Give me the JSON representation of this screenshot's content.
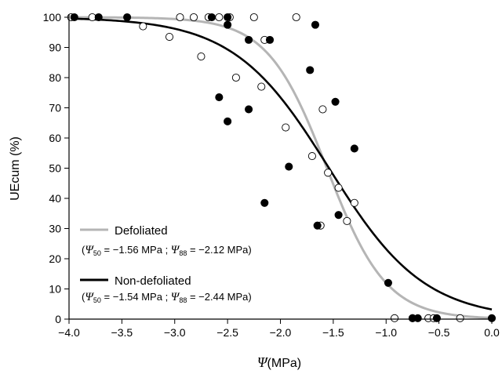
{
  "chart_data": {
    "type": "scatter",
    "xlabel_symbol": "Ψ",
    "xlabel_unit": "(MPa)",
    "ylabel": "UEcum (%)",
    "xlim": [
      -4.0,
      0.0
    ],
    "ylim": [
      0,
      100
    ],
    "x_ticks": [
      "−4.0",
      "−3.5",
      "−3.0",
      "−2.5",
      "−2.0",
      "−1.5",
      "−1.0",
      "−0.5",
      "0.0"
    ],
    "x_tick_values": [
      -4.0,
      -3.5,
      -3.0,
      -2.5,
      -2.0,
      -1.5,
      -1.0,
      -0.5,
      0.0
    ],
    "y_ticks": [
      "0",
      "10",
      "20",
      "30",
      "40",
      "50",
      "60",
      "70",
      "80",
      "90",
      "100"
    ],
    "y_tick_values": [
      0,
      10,
      20,
      30,
      40,
      50,
      60,
      70,
      80,
      90,
      100
    ],
    "grid": false,
    "legend_position": "bottom-left",
    "series": [
      {
        "name": "Defoliated",
        "color": "#b5b5b5",
        "marker": "open-circle",
        "curve": {
          "psi50": -1.56,
          "psi88": -2.12
        },
        "legend_note": {
          "open": "(",
          "psi50_sub": "50",
          "psi50_text": " = −1.56 MPa ; ",
          "psi88_sub": "88",
          "psi88_text": " = −2.12 MPa)"
        },
        "points": [
          [
            -3.98,
            100
          ],
          [
            -3.78,
            100
          ],
          [
            -3.3,
            97
          ],
          [
            -3.05,
            93.5
          ],
          [
            -2.95,
            100
          ],
          [
            -2.82,
            100
          ],
          [
            -2.75,
            87
          ],
          [
            -2.68,
            100
          ],
          [
            -2.58,
            100
          ],
          [
            -2.48,
            100
          ],
          [
            -2.42,
            80
          ],
          [
            -2.25,
            100
          ],
          [
            -2.18,
            77
          ],
          [
            -2.15,
            92.5
          ],
          [
            -1.95,
            63.5
          ],
          [
            -1.85,
            100
          ],
          [
            -1.7,
            54
          ],
          [
            -1.62,
            31
          ],
          [
            -1.6,
            69.5
          ],
          [
            -1.55,
            48.5
          ],
          [
            -1.45,
            43.5
          ],
          [
            -1.37,
            32.5
          ],
          [
            -1.3,
            38.5
          ],
          [
            -0.92,
            0.3
          ],
          [
            -0.75,
            0.3
          ],
          [
            -0.6,
            0.3
          ],
          [
            -0.55,
            0.3
          ],
          [
            -0.3,
            0.3
          ]
        ]
      },
      {
        "name": "Non-defoliated",
        "color": "#000000",
        "marker": "filled-circle",
        "curve": {
          "psi50": -1.54,
          "psi88": -2.44
        },
        "legend_note": {
          "open": "(",
          "psi50_sub": "50",
          "psi50_text": " = −1.54 MPa ; ",
          "psi88_sub": "88",
          "psi88_text": " = −2.44 MPa)"
        },
        "points": [
          [
            -3.95,
            100
          ],
          [
            -3.72,
            100
          ],
          [
            -3.45,
            100
          ],
          [
            -2.65,
            100
          ],
          [
            -2.5,
            100
          ],
          [
            -2.5,
            97.5
          ],
          [
            -2.58,
            73.5
          ],
          [
            -2.5,
            65.5
          ],
          [
            -2.3,
            92.5
          ],
          [
            -2.3,
            69.5
          ],
          [
            -2.1,
            92.5
          ],
          [
            -2.15,
            38.5
          ],
          [
            -1.92,
            50.5
          ],
          [
            -1.72,
            82.5
          ],
          [
            -1.67,
            97.5
          ],
          [
            -1.65,
            31
          ],
          [
            -1.48,
            72
          ],
          [
            -1.45,
            34.5
          ],
          [
            -1.3,
            56.5
          ],
          [
            -0.98,
            12
          ],
          [
            -0.75,
            0.3
          ],
          [
            -0.7,
            0.3
          ],
          [
            -0.52,
            0.3
          ],
          [
            0.0,
            0.3
          ]
        ]
      }
    ]
  }
}
